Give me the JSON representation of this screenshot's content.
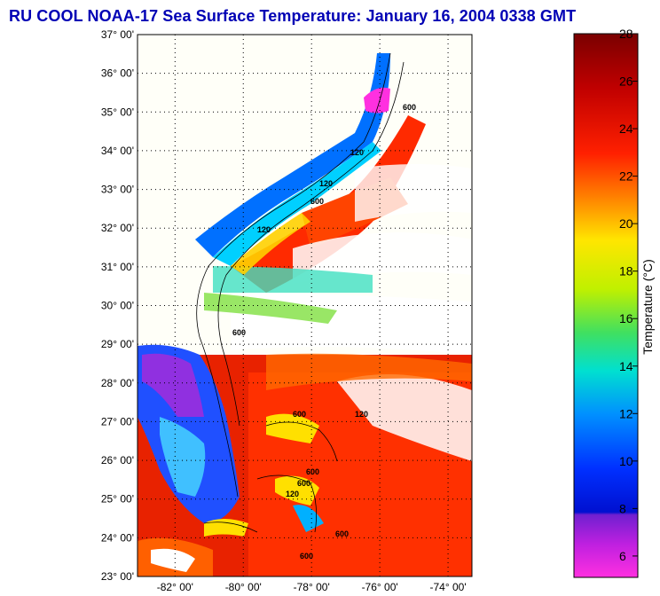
{
  "title": "RU COOL  NOAA-17  Sea Surface Temperature:  January 16, 2004 0338 GMT",
  "map": {
    "lat_labels": [
      "37° 00'",
      "36° 00'",
      "35° 00'",
      "34° 00'",
      "33° 00'",
      "32° 00'",
      "31° 00'",
      "30° 00'",
      "29° 00'",
      "28° 00'",
      "27° 00'",
      "26° 00'",
      "25° 00'",
      "24° 00'",
      "23° 00'"
    ],
    "lon_labels": [
      "-82° 00'",
      "-80° 00'",
      "-78° 00'",
      "-76° 00'",
      "-74° 00'"
    ],
    "contour_labels": [
      "120",
      "600",
      "120",
      "600",
      "120",
      "600",
      "600",
      "120",
      "600",
      "600",
      "600",
      "120",
      "600"
    ]
  },
  "colorbar": {
    "label": "Temperature (°C)",
    "ticks": [
      "28",
      "26",
      "24",
      "22",
      "20",
      "18",
      "16",
      "14",
      "12",
      "10",
      "8",
      "6"
    ],
    "colors": {
      "c28": "#7a0000",
      "c26": "#d00000",
      "c24": "#ff3000",
      "c22": "#ff9000",
      "c20": "#ffe600",
      "c18": "#c8f000",
      "c16": "#4ce060",
      "c14": "#00e0e0",
      "c12": "#0090ff",
      "c10": "#0030ff",
      "c8": "#0010e0",
      "c7": "#9020d0",
      "c6": "#ff20e0"
    }
  }
}
